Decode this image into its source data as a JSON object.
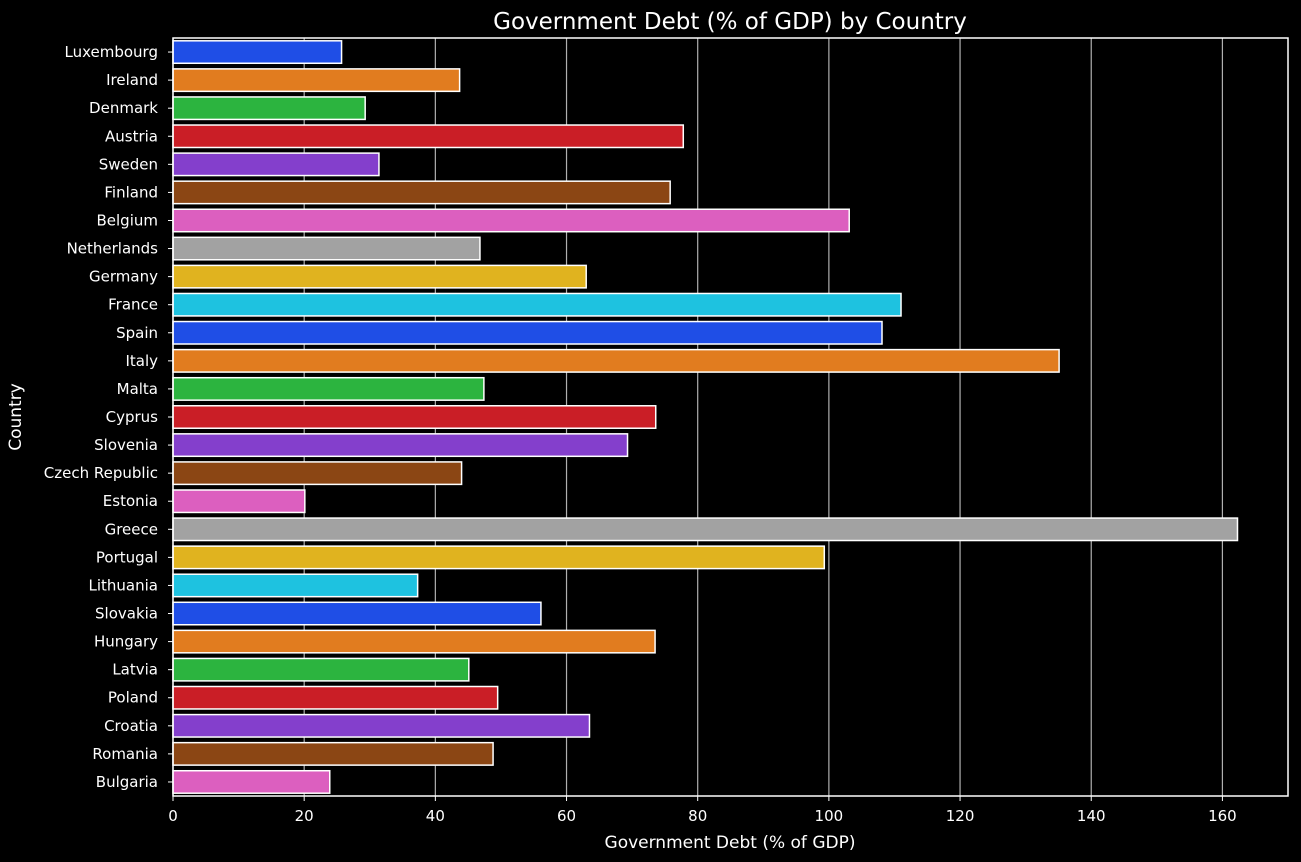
{
  "chart_data": {
    "type": "bar",
    "orientation": "horizontal",
    "title": "Government Debt (% of GDP) by Country",
    "xlabel": "Government Debt (% of GDP)",
    "ylabel": "Country",
    "xlim": [
      0,
      170
    ],
    "xticks": [
      0,
      20,
      40,
      60,
      80,
      100,
      120,
      140,
      160
    ],
    "grid": "vertical",
    "background": "#000000",
    "bar_edge_color": "#ffffff",
    "categories": [
      "Luxembourg",
      "Ireland",
      "Denmark",
      "Austria",
      "Sweden",
      "Finland",
      "Belgium",
      "Netherlands",
      "Germany",
      "France",
      "Spain",
      "Italy",
      "Malta",
      "Cyprus",
      "Slovenia",
      "Czech Republic",
      "Estonia",
      "Greece",
      "Portugal",
      "Lithuania",
      "Slovakia",
      "Hungary",
      "Latvia",
      "Poland",
      "Croatia",
      "Romania",
      "Bulgaria"
    ],
    "values": [
      25.7,
      43.7,
      29.3,
      77.8,
      31.4,
      75.8,
      103.1,
      46.8,
      63.0,
      111.0,
      108.1,
      135.1,
      47.4,
      73.6,
      69.3,
      44.0,
      20.1,
      162.3,
      99.3,
      37.3,
      56.1,
      73.5,
      45.1,
      49.5,
      63.5,
      48.8,
      23.9
    ],
    "palette": [
      "#1f4ee6",
      "#e17c1f",
      "#2cb43f",
      "#ca1e26",
      "#843fcc",
      "#8b4614",
      "#dc5fbf",
      "#a2a2a2",
      "#e0b31f",
      "#1ec2e0"
    ]
  }
}
